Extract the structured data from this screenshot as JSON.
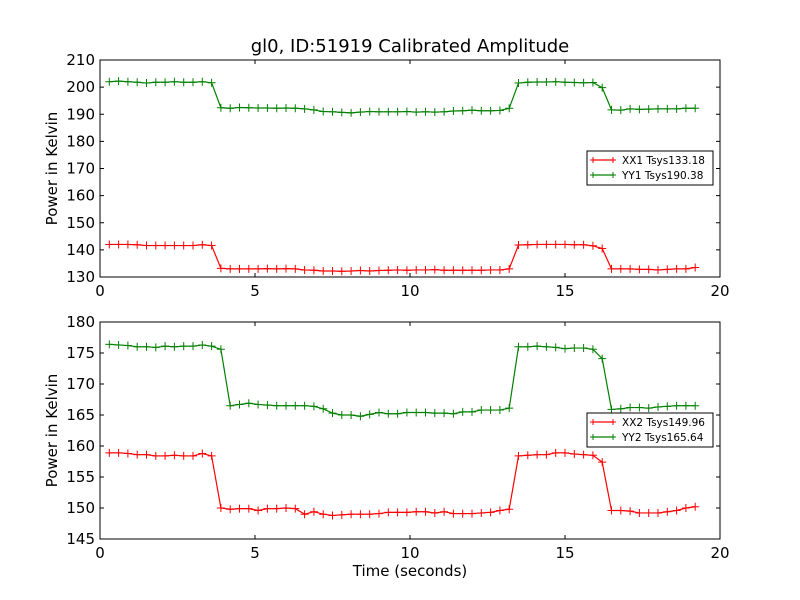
{
  "chart_data": [
    {
      "type": "line",
      "title": "gl0, ID:51919 Calibrated Amplitude",
      "xlabel": "",
      "ylabel": "Power in Kelvin",
      "xlim": [
        0,
        20
      ],
      "ylim": [
        130,
        210
      ],
      "xticks": [
        0,
        5,
        10,
        15,
        20
      ],
      "yticks": [
        130,
        140,
        150,
        160,
        170,
        180,
        190,
        200,
        210
      ],
      "legend_position": "center-right",
      "grid": false,
      "x": [
        0.3,
        0.6,
        0.9,
        1.2,
        1.5,
        1.8,
        2.1,
        2.4,
        2.7,
        3.0,
        3.3,
        3.6,
        3.9,
        4.2,
        4.5,
        4.8,
        5.1,
        5.4,
        5.7,
        6.0,
        6.3,
        6.6,
        6.9,
        7.2,
        7.5,
        7.8,
        8.1,
        8.4,
        8.7,
        9.0,
        9.3,
        9.6,
        9.9,
        10.2,
        10.5,
        10.8,
        11.1,
        11.4,
        11.7,
        12.0,
        12.3,
        12.6,
        12.9,
        13.2,
        13.5,
        13.8,
        14.1,
        14.4,
        14.7,
        15.0,
        15.3,
        15.6,
        15.9,
        16.2,
        16.5,
        16.8,
        17.1,
        17.4,
        17.7,
        18.0,
        18.3,
        18.6,
        18.9,
        19.2
      ],
      "series": [
        {
          "name": "XX1 Tsys133.18",
          "color": "#ff0000",
          "values": [
            142.0,
            142.0,
            142.0,
            141.9,
            141.6,
            141.6,
            141.6,
            141.6,
            141.6,
            141.6,
            141.9,
            141.6,
            133.2,
            133.0,
            133.0,
            133.0,
            133.0,
            133.1,
            133.0,
            133.1,
            133.0,
            132.6,
            132.5,
            132.2,
            132.2,
            132.1,
            132.2,
            132.4,
            132.2,
            132.4,
            132.5,
            132.6,
            132.5,
            132.6,
            132.6,
            132.7,
            132.5,
            132.5,
            132.5,
            132.5,
            132.5,
            132.6,
            132.6,
            133.0,
            141.8,
            141.9,
            142.0,
            142.0,
            142.0,
            142.0,
            141.9,
            141.9,
            141.5,
            140.5,
            133.0,
            133.0,
            133.0,
            132.8,
            132.8,
            132.6,
            132.8,
            133.0,
            133.0,
            133.5
          ]
        },
        {
          "name": "YY1 Tsys190.38",
          "color": "#008000",
          "values": [
            202.0,
            202.2,
            202.0,
            201.8,
            201.5,
            201.8,
            201.8,
            202.0,
            201.8,
            201.8,
            202.0,
            201.6,
            192.4,
            192.2,
            192.5,
            192.4,
            192.3,
            192.3,
            192.2,
            192.3,
            192.2,
            192.0,
            191.6,
            191.0,
            190.9,
            190.7,
            190.5,
            190.8,
            191.0,
            190.9,
            190.9,
            190.9,
            191.0,
            190.8,
            190.9,
            190.8,
            190.9,
            191.2,
            191.3,
            191.5,
            191.3,
            191.3,
            191.4,
            192.2,
            201.5,
            201.8,
            201.9,
            201.9,
            202.0,
            201.8,
            201.7,
            201.6,
            201.7,
            199.8,
            191.6,
            191.5,
            192.0,
            191.8,
            191.9,
            192.0,
            192.0,
            192.0,
            192.2,
            192.2
          ]
        }
      ]
    },
    {
      "type": "line",
      "title": "",
      "xlabel": "Time (seconds)",
      "ylabel": "Power in Kelvin",
      "xlim": [
        0,
        20
      ],
      "ylim": [
        145,
        180
      ],
      "xticks": [
        0,
        5,
        10,
        15,
        20
      ],
      "yticks": [
        145,
        150,
        155,
        160,
        165,
        170,
        175,
        180
      ],
      "legend_position": "center-right",
      "grid": false,
      "x": [
        0.3,
        0.6,
        0.9,
        1.2,
        1.5,
        1.8,
        2.1,
        2.4,
        2.7,
        3.0,
        3.3,
        3.6,
        3.9,
        4.2,
        4.5,
        4.8,
        5.1,
        5.4,
        5.7,
        6.0,
        6.3,
        6.6,
        6.9,
        7.2,
        7.5,
        7.8,
        8.1,
        8.4,
        8.7,
        9.0,
        9.3,
        9.6,
        9.9,
        10.2,
        10.5,
        10.8,
        11.1,
        11.4,
        11.7,
        12.0,
        12.3,
        12.6,
        12.9,
        13.2,
        13.5,
        13.8,
        14.1,
        14.4,
        14.7,
        15.0,
        15.3,
        15.6,
        15.9,
        16.2,
        16.5,
        16.8,
        17.1,
        17.4,
        17.7,
        18.0,
        18.3,
        18.6,
        18.9,
        19.2
      ],
      "series": [
        {
          "name": "XX2 Tsys149.96",
          "color": "#ff0000",
          "values": [
            158.9,
            158.9,
            158.8,
            158.6,
            158.6,
            158.4,
            158.4,
            158.5,
            158.4,
            158.4,
            158.8,
            158.4,
            150.0,
            149.8,
            149.9,
            149.9,
            149.6,
            149.9,
            149.9,
            150.0,
            149.9,
            149.0,
            149.4,
            149.0,
            148.8,
            148.9,
            149.0,
            149.0,
            149.0,
            149.1,
            149.3,
            149.3,
            149.3,
            149.4,
            149.4,
            149.2,
            149.4,
            149.1,
            149.1,
            149.1,
            149.2,
            149.3,
            149.6,
            149.8,
            158.4,
            158.5,
            158.6,
            158.6,
            158.9,
            158.9,
            158.7,
            158.6,
            158.5,
            157.4,
            149.6,
            149.6,
            149.5,
            149.2,
            149.2,
            149.2,
            149.4,
            149.6,
            150.0,
            150.2
          ]
        },
        {
          "name": "YY2 Tsys165.64",
          "color": "#008000",
          "values": [
            176.4,
            176.3,
            176.2,
            176.0,
            176.0,
            175.9,
            176.1,
            176.0,
            176.1,
            176.1,
            176.3,
            176.1,
            175.6,
            166.5,
            166.7,
            166.9,
            166.7,
            166.6,
            166.5,
            166.5,
            166.5,
            166.5,
            166.4,
            166.0,
            165.3,
            165.0,
            165.0,
            164.8,
            165.1,
            165.4,
            165.2,
            165.2,
            165.4,
            165.4,
            165.4,
            165.3,
            165.3,
            165.2,
            165.5,
            165.5,
            165.8,
            165.8,
            165.8,
            166.1,
            176.0,
            176.0,
            176.1,
            176.0,
            175.9,
            175.7,
            175.8,
            175.8,
            175.6,
            174.1,
            165.9,
            166.0,
            166.2,
            166.2,
            166.1,
            166.3,
            166.4,
            166.5,
            166.5,
            166.5
          ]
        }
      ]
    }
  ]
}
